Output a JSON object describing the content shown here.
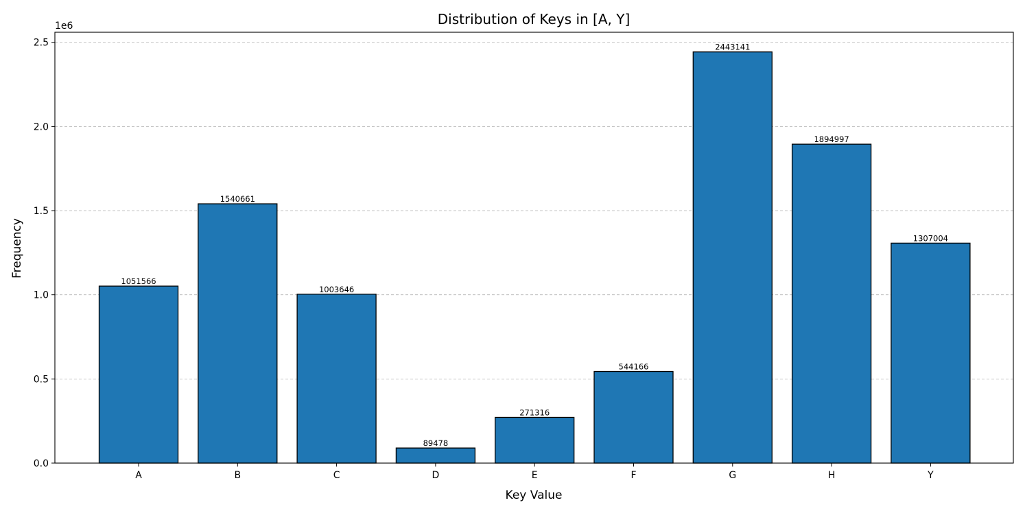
{
  "chart_data": {
    "type": "bar",
    "title": "Distribution of Keys in [A, Y]",
    "xlabel": "Key Value",
    "ylabel": "Frequency",
    "y_offset_text": "1e6",
    "categories": [
      "A",
      "B",
      "C",
      "D",
      "E",
      "F",
      "G",
      "H",
      "Y"
    ],
    "values": [
      1051566,
      1540661,
      1003646,
      89478,
      271316,
      544166,
      2443141,
      1894997,
      1307004
    ],
    "data_labels": [
      "1051566",
      "1540661",
      "1003646",
      "89478",
      "271316",
      "544166",
      "2443141",
      "1894997",
      "1307004"
    ],
    "ylim": [
      0,
      2560000
    ],
    "yticks": [
      0,
      500000,
      1000000,
      1500000,
      2000000,
      2500000
    ],
    "ytick_labels": [
      "0.0",
      "0.5",
      "1.0",
      "1.5",
      "2.0",
      "2.5"
    ],
    "grid": "y-dashed",
    "legend": "none",
    "colors": {
      "bar": "#1f77b4",
      "edge": "#000000",
      "grid": "#b0b0b0"
    }
  }
}
